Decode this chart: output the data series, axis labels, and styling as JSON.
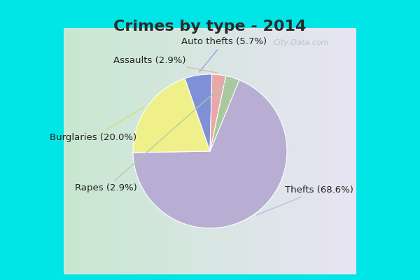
{
  "title": "Crimes by type - 2014",
  "labels": [
    "Thefts",
    "Burglaries",
    "Auto thefts",
    "Assaults",
    "Rapes"
  ],
  "values": [
    68.6,
    20.0,
    5.7,
    2.9,
    2.9
  ],
  "colors": [
    "#b8aed4",
    "#f0f08a",
    "#8090d8",
    "#e8a8a8",
    "#aac8a0"
  ],
  "label_texts": [
    "Thefts (68.6%)",
    "Burglaries (20.0%)",
    "Auto thefts (5.7%)",
    "Assaults (2.9%)",
    "Rapes (2.9%)"
  ],
  "fig_bg": "#00e5e5",
  "title_fontsize": 16,
  "title_color": "#2a2a2a",
  "label_fontsize": 9.5,
  "startangle": 68,
  "label_offsets_x": [
    1.42,
    -1.52,
    0.18,
    -0.78,
    -1.35
  ],
  "label_offsets_y": [
    -0.5,
    0.18,
    1.42,
    1.18,
    -0.48
  ],
  "line_colors": [
    "#c0b8dc",
    "#d8d870",
    "#88a0e0",
    "#e8b0b0",
    "#b0c8a8"
  ],
  "watermark": "City-Data.com"
}
